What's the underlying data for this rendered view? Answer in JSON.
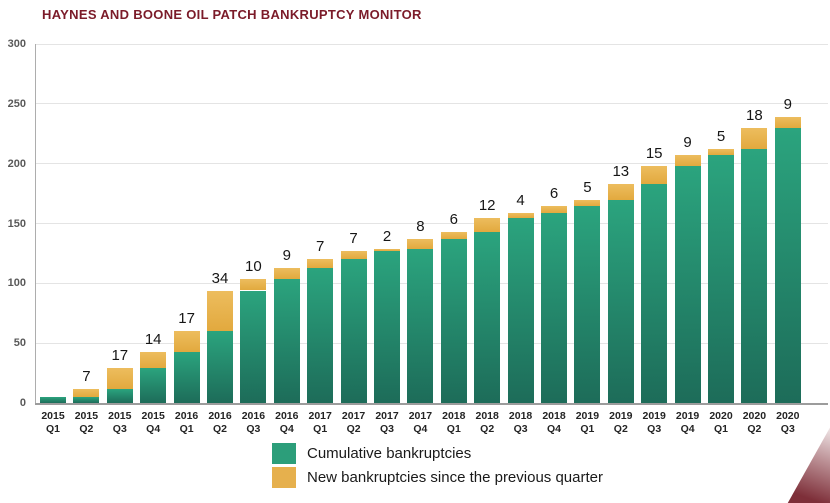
{
  "title": "HAYNES AND BOONE OIL PATCH BANKRUPTCY MONITOR",
  "colors": {
    "title": "#7B1B29",
    "cumulative_top": "#2BA47E",
    "cumulative_bottom": "#1D6C59",
    "cumulative_swatch": "#2C9E7A",
    "new_swatch": "#E6B04D",
    "gridline": "#E4E4E4",
    "axis": "#9C9C9C",
    "corner_accent": "#7E2F39"
  },
  "legend": {
    "items": [
      {
        "key": "cumulative",
        "label": "Cumulative bankruptcies"
      },
      {
        "key": "new",
        "label": "New bankruptcies since the previous quarter"
      }
    ]
  },
  "chart_data": {
    "type": "bar",
    "stacked": true,
    "title": "HAYNES AND BOONE OIL PATCH BANKRUPTCY MONITOR",
    "categories": [
      "2015 Q1",
      "2015 Q2",
      "2015 Q3",
      "2015 Q4",
      "2016 Q1",
      "2016 Q2",
      "2016 Q3",
      "2016 Q4",
      "2017 Q1",
      "2017 Q2",
      "2017 Q3",
      "2017 Q4",
      "2018 Q1",
      "2018 Q2",
      "2018 Q3",
      "2018 Q4",
      "2019 Q1",
      "2019 Q2",
      "2019 Q3",
      "2019 Q4",
      "2020 Q1",
      "2020 Q2",
      "2020 Q3"
    ],
    "series": [
      {
        "name": "Cumulative bankruptcies",
        "values": [
          5,
          5,
          12,
          29,
          43,
          60,
          94,
          104,
          113,
          120,
          127,
          129,
          137,
          143,
          155,
          159,
          165,
          170,
          183,
          198,
          207,
          212,
          230
        ]
      },
      {
        "name": "New bankruptcies since the previous quarter",
        "values": [
          0,
          7,
          17,
          14,
          17,
          34,
          10,
          9,
          7,
          7,
          2,
          8,
          6,
          12,
          4,
          6,
          5,
          13,
          15,
          9,
          5,
          18,
          9
        ]
      }
    ],
    "cumulative_totals": [
      5,
      12,
      29,
      43,
      60,
      94,
      104,
      113,
      120,
      127,
      129,
      137,
      143,
      155,
      159,
      165,
      170,
      183,
      198,
      207,
      212,
      230,
      239
    ],
    "bar_labels": [
      "",
      "7",
      "17",
      "14",
      "17",
      "34",
      "10",
      "9",
      "7",
      "7",
      "2",
      "8",
      "6",
      "12",
      "4",
      "6",
      "5",
      "13",
      "15",
      "9",
      "5",
      "18",
      "9"
    ],
    "xlabel": "",
    "ylabel": "",
    "ylim": [
      0,
      300
    ],
    "yticks": [
      0,
      50,
      100,
      150,
      200,
      250,
      300
    ],
    "grid": true,
    "legend_position": "bottom"
  }
}
